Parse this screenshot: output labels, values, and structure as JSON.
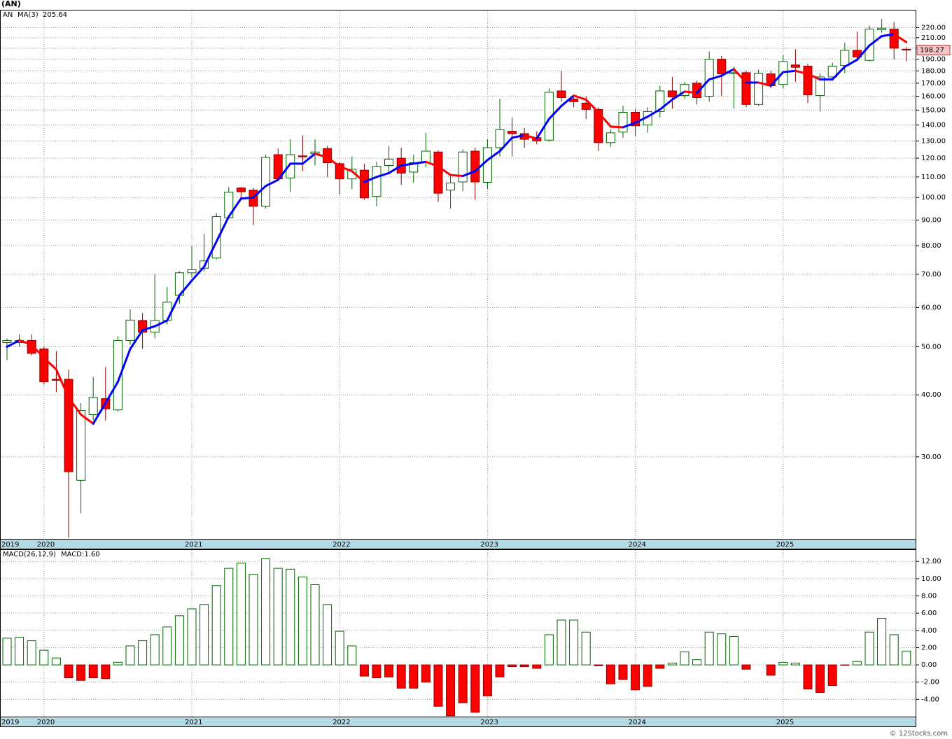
{
  "header": {
    "title": "(AN)"
  },
  "chart_data": [
    {
      "type": "candlestick",
      "name": "AN",
      "log_scale": true,
      "grid": true,
      "up_color": "#006400",
      "down_color": "#ff0000",
      "categories": [
        "2019",
        null,
        null,
        "2020",
        null,
        null,
        null,
        null,
        null,
        null,
        null,
        null,
        null,
        null,
        null,
        "2021",
        null,
        null,
        null,
        null,
        null,
        null,
        null,
        null,
        null,
        null,
        null,
        "2022",
        null,
        null,
        null,
        null,
        null,
        null,
        null,
        null,
        null,
        null,
        null,
        "2023",
        null,
        null,
        null,
        null,
        null,
        null,
        null,
        null,
        null,
        null,
        null,
        "2024",
        null,
        null,
        null,
        null,
        null,
        null,
        null,
        null,
        null,
        null,
        null,
        "2025",
        null,
        null,
        null,
        null,
        null,
        null,
        null,
        null,
        null,
        null
      ],
      "open": [
        51,
        51,
        51.5,
        49.5,
        43,
        43,
        26.9,
        36.5,
        39.3,
        37.3,
        51.5,
        56.5,
        53.5,
        56.5,
        63.5,
        70.5,
        72,
        75.5,
        91,
        104.5,
        103.5,
        96,
        122,
        109.5,
        121.3,
        122.5,
        125.5,
        117,
        109,
        113.5,
        100.5,
        116,
        120,
        112.5,
        117.5,
        123.5,
        103.5,
        107.5,
        124,
        107.3,
        126,
        136,
        134.5,
        132,
        130.5,
        164,
        158,
        155,
        150.5,
        129,
        135.5,
        148.5,
        140,
        149,
        164,
        160.5,
        170,
        160,
        190,
        177.5,
        178.5,
        154,
        177.5,
        169,
        185,
        184,
        160.5,
        175,
        184.5,
        198,
        189,
        218,
        218.5,
        199
      ],
      "high": [
        52,
        53,
        53,
        50,
        49,
        45,
        38.5,
        43.5,
        45.5,
        52.5,
        59.5,
        58.5,
        70,
        66,
        71,
        80,
        84.5,
        93,
        105,
        105,
        104.5,
        122,
        125.5,
        131,
        133.5,
        131,
        127,
        118,
        121,
        117,
        118,
        127,
        126,
        122,
        135,
        124.5,
        111,
        125,
        126,
        131,
        158,
        145,
        138,
        136,
        166,
        180,
        160,
        160,
        152,
        137,
        153,
        151,
        152,
        168,
        175,
        171,
        172,
        197,
        193,
        184,
        180,
        181,
        180,
        194,
        199,
        186,
        178,
        187,
        205,
        216,
        222,
        229,
        226,
        201
      ],
      "low": [
        47,
        50,
        48,
        42,
        40.5,
        20.6,
        23.1,
        35.5,
        35.5,
        37,
        50.5,
        49.5,
        52,
        55.5,
        61,
        69,
        71,
        75,
        90.5,
        99,
        88,
        95,
        108,
        102.5,
        113,
        116,
        110,
        101.5,
        104,
        99,
        96,
        112,
        106,
        107,
        115,
        98,
        95,
        103,
        99,
        104,
        121,
        121,
        126,
        128,
        129.5,
        156,
        152,
        144,
        124,
        126.5,
        132,
        133,
        135,
        145,
        151,
        158,
        154,
        156,
        160,
        151,
        152,
        153,
        166,
        166,
        171,
        155,
        149,
        173,
        178,
        190,
        188,
        215,
        190,
        188
      ],
      "close": [
        51.5,
        51.5,
        48.5,
        42.5,
        42.8,
        28,
        37.2,
        39.5,
        37.5,
        51.5,
        56.6,
        53.5,
        56.5,
        61.5,
        70.5,
        71.5,
        74.5,
        91.5,
        102.5,
        102.7,
        96,
        120.5,
        109,
        122,
        120.8,
        123.5,
        117.5,
        109,
        114,
        99.8,
        115.5,
        119.5,
        112,
        117.5,
        124,
        102,
        107,
        123.5,
        107.5,
        126,
        137,
        134.5,
        131,
        130,
        163,
        159,
        156,
        150.5,
        129,
        135,
        148.5,
        139.5,
        149,
        164,
        159.5,
        169,
        159,
        190,
        177.5,
        178.5,
        154,
        178,
        168,
        188,
        183,
        161,
        175,
        184,
        198,
        192,
        218.5,
        219.5,
        200,
        198.27
      ],
      "last_price_label": "198.27",
      "ma": {
        "name": "MA(3)",
        "up_color": "#0000ff",
        "down_color": "#ff0000",
        "value_label": "205.64",
        "values": [
          50,
          51.5,
          50.5,
          47.5,
          45,
          39.5,
          36.5,
          35,
          38.5,
          42.5,
          49.5,
          54,
          55,
          56.5,
          63.5,
          68,
          72.5,
          81.5,
          91.5,
          99.5,
          100,
          105.5,
          108.5,
          117,
          117,
          122.5,
          120.5,
          115.5,
          113,
          107.5,
          110,
          112,
          116,
          117,
          118,
          115.5,
          111,
          110.5,
          113,
          119,
          124,
          132,
          133.5,
          131.5,
          144,
          153,
          160.5,
          157.5,
          148.5,
          139,
          138.5,
          141.5,
          145.5,
          150.5,
          157.5,
          163.5,
          162.5,
          173,
          176,
          181.5,
          170.5,
          170.5,
          168,
          179,
          180,
          177.5,
          173,
          173,
          183.5,
          189.5,
          202.5,
          211.5,
          213.5,
          205.64
        ]
      },
      "ylim": [
        20.5,
        239
      ],
      "yticks": [
        {
          "value": 220,
          "label": "220.00"
        },
        {
          "value": 210,
          "label": "210.00"
        },
        {
          "value": 200,
          "label": "200.00"
        },
        {
          "value": 190,
          "label": "190.00"
        },
        {
          "value": 180,
          "label": "180.00"
        },
        {
          "value": 170,
          "label": "170.00"
        },
        {
          "value": 160,
          "label": "160.00"
        },
        {
          "value": 150,
          "label": "150.00"
        },
        {
          "value": 140,
          "label": "140.00"
        },
        {
          "value": 130,
          "label": "130.00"
        },
        {
          "value": 120,
          "label": "120.00"
        },
        {
          "value": 110,
          "label": "110.00"
        },
        {
          "value": 100,
          "label": "100.00"
        },
        {
          "value": 90,
          "label": "90.00"
        },
        {
          "value": 80,
          "label": "80.00"
        },
        {
          "value": 70,
          "label": "70.00"
        },
        {
          "value": 60,
          "label": "60.00"
        },
        {
          "value": 50,
          "label": "50.00"
        },
        {
          "value": 40,
          "label": "40.00"
        },
        {
          "value": 30,
          "label": "30.00"
        }
      ]
    },
    {
      "type": "bar",
      "name": "MACD(26,12,9)",
      "value_label": "MACD:1.60",
      "grid": true,
      "up_color": "#006400",
      "down_color": "#ff0000",
      "categories": [
        "2019",
        null,
        null,
        "2020",
        null,
        null,
        null,
        null,
        null,
        null,
        null,
        null,
        null,
        null,
        null,
        "2021",
        null,
        null,
        null,
        null,
        null,
        null,
        null,
        null,
        null,
        null,
        null,
        "2022",
        null,
        null,
        null,
        null,
        null,
        null,
        null,
        null,
        null,
        null,
        null,
        "2023",
        null,
        null,
        null,
        null,
        null,
        null,
        null,
        null,
        null,
        null,
        null,
        "2024",
        null,
        null,
        null,
        null,
        null,
        null,
        null,
        null,
        null,
        null,
        null,
        "2025",
        null,
        null,
        null,
        null,
        null,
        null,
        null,
        null,
        null,
        null
      ],
      "values": [
        3.1,
        3.2,
        2.8,
        1.7,
        0.8,
        -1.5,
        -1.8,
        -1.5,
        -1.6,
        0.3,
        2.2,
        2.8,
        3.5,
        4.4,
        5.7,
        6.5,
        7,
        9.2,
        11.2,
        11.8,
        10.5,
        12.3,
        11.2,
        11.1,
        10.2,
        9.3,
        7,
        3.9,
        2.2,
        -1.3,
        -1.5,
        -1.4,
        -2.7,
        -2.7,
        -2,
        -4.8,
        -5.9,
        -4.4,
        -5.5,
        -3.6,
        -1.4,
        -0.2,
        -0.2,
        -0.4,
        3.5,
        5.2,
        5.2,
        3.8,
        -0.1,
        -2.2,
        -1.7,
        -2.9,
        -2.5,
        -0.4,
        0.2,
        1.5,
        0.6,
        3.8,
        3.6,
        3.3,
        -0.5,
        0,
        -1.2,
        0.3,
        0.2,
        -2.8,
        -3.2,
        -2.4,
        -0.05,
        0.4,
        3.8,
        5.4,
        3.5,
        1.6
      ],
      "ylim": [
        -6,
        13.4
      ],
      "yticks": [
        {
          "value": 12,
          "label": "12.00"
        },
        {
          "value": 10,
          "label": "10.00"
        },
        {
          "value": 8,
          "label": "8.00"
        },
        {
          "value": 6,
          "label": "6.00"
        },
        {
          "value": 4,
          "label": "4.00"
        },
        {
          "value": 2,
          "label": "2.00"
        },
        {
          "value": 0,
          "label": "0.00"
        },
        {
          "value": -2,
          "label": "-2.00"
        },
        {
          "value": -4,
          "label": "-4.00"
        }
      ]
    }
  ],
  "footer": "© 12Stocks.com"
}
